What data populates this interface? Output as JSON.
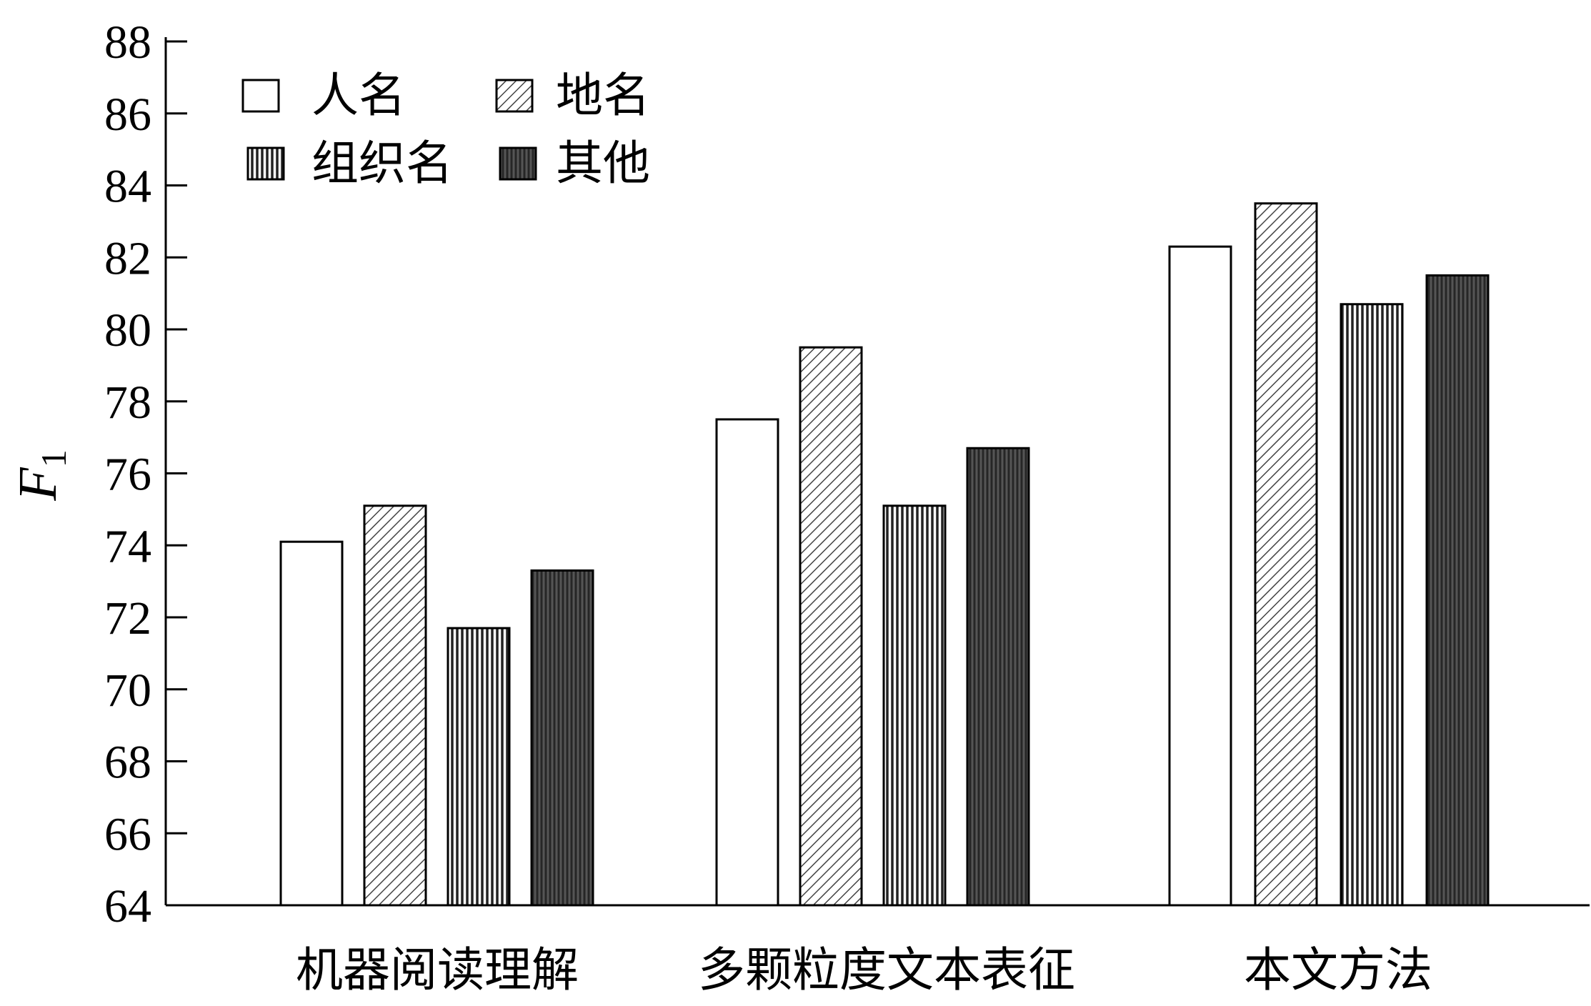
{
  "chart_data": {
    "type": "bar",
    "title": "",
    "xlabel": "",
    "ylabel": "F",
    "ylabel_subscript": "1",
    "ylim": [
      64,
      88
    ],
    "yticks": [
      64,
      66,
      68,
      70,
      72,
      74,
      76,
      78,
      80,
      82,
      84,
      86,
      88
    ],
    "legend_placement": "top-left",
    "grid": false,
    "categories": [
      "机器阅读理解",
      "多颗粒度文本表征",
      "本文方法"
    ],
    "series": [
      {
        "name": "人名",
        "values": [
          74.1,
          77.5,
          82.3
        ],
        "pattern": "none"
      },
      {
        "name": "地名",
        "values": [
          75.1,
          79.5,
          83.5
        ],
        "pattern": "diagonal"
      },
      {
        "name": "组织名",
        "values": [
          71.7,
          75.1,
          80.7
        ],
        "pattern": "vertical"
      },
      {
        "name": "其他",
        "values": [
          73.3,
          76.7,
          81.5
        ],
        "pattern": "dense-dark"
      }
    ]
  }
}
